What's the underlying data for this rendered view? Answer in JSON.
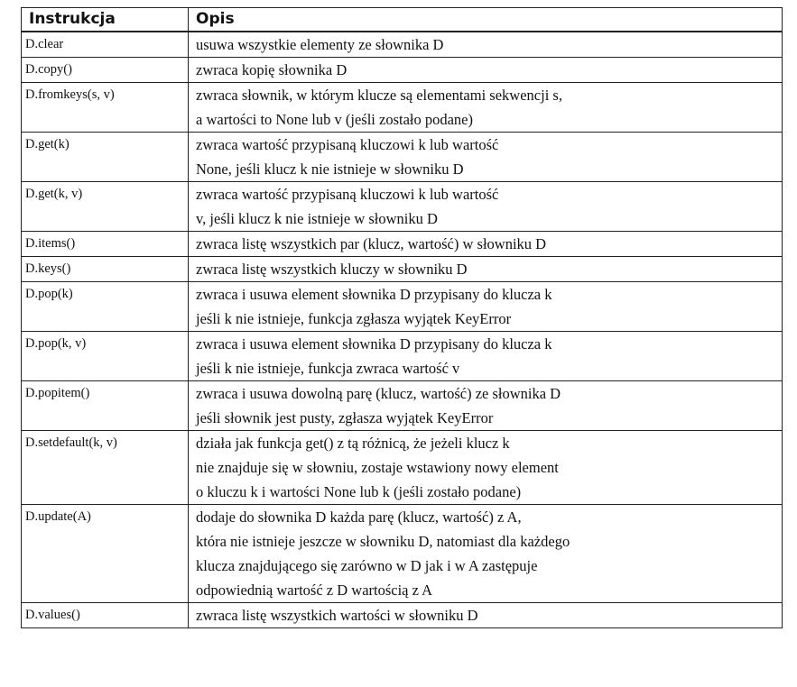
{
  "table": {
    "headers": [
      "Instrukcja",
      "Opis"
    ],
    "rows": [
      {
        "instr": "D.clear",
        "desc": [
          "usuwa wszystkie elementy ze słownika D"
        ]
      },
      {
        "instr": "D.copy()",
        "desc": [
          "zwraca kopię słownika D"
        ]
      },
      {
        "instr": "D.fromkeys(s, v)",
        "desc": [
          "zwraca słownik, w którym klucze są elementami sekwencji s,",
          "a wartości to None lub v (jeśli zostało podane)"
        ]
      },
      {
        "instr": "D.get(k)",
        "desc": [
          "zwraca wartość przypisaną kluczowi k lub wartość",
          "None, jeśli klucz k nie istnieje w słowniku D"
        ]
      },
      {
        "instr": "D.get(k, v)",
        "desc": [
          "zwraca wartość przypisaną kluczowi k lub wartość",
          "v, jeśli klucz k nie istnieje w słowniku D"
        ]
      },
      {
        "instr": "D.items()",
        "desc": [
          "zwraca listę wszystkich par (klucz, wartość) w słowniku D"
        ]
      },
      {
        "instr": "D.keys()",
        "desc": [
          "zwraca listę wszystkich kluczy w słowniku D"
        ]
      },
      {
        "instr": "D.pop(k)",
        "desc": [
          "zwraca i usuwa element słownika D przypisany do klucza k",
          "jeśli k nie istnieje, funkcja zgłasza wyjątek KeyError"
        ]
      },
      {
        "instr": "D.pop(k, v)",
        "desc": [
          "zwraca i usuwa element słownika D przypisany do klucza k",
          "jeśli k nie istnieje, funkcja zwraca wartość v"
        ]
      },
      {
        "instr": "D.popitem()",
        "desc": [
          "zwraca i usuwa dowolną parę (klucz, wartość) ze słownika D",
          "jeśli słownik jest pusty, zgłasza wyjątek KeyError"
        ]
      },
      {
        "instr": "D.setdefault(k, v)",
        "desc": [
          "działa jak funkcja get() z tą różnicą, że jeżeli klucz k",
          "nie znajduje się w słowniu, zostaje wstawiony nowy element",
          "o kluczu k i wartości None lub k (jeśli zostało podane)"
        ]
      },
      {
        "instr": "D.update(A)",
        "desc": [
          "dodaje do słownika D każda parę (klucz, wartość) z A,",
          "która nie istnieje jeszcze w słowniku D, natomiast dla każdego",
          "klucza znajdującego się zarówno w D jak i w A zastępuje",
          "odpowiednią wartość z D wartością z A"
        ]
      },
      {
        "instr": "D.values()",
        "desc": [
          "zwraca listę wszystkich wartości w słowniku D"
        ]
      }
    ]
  }
}
